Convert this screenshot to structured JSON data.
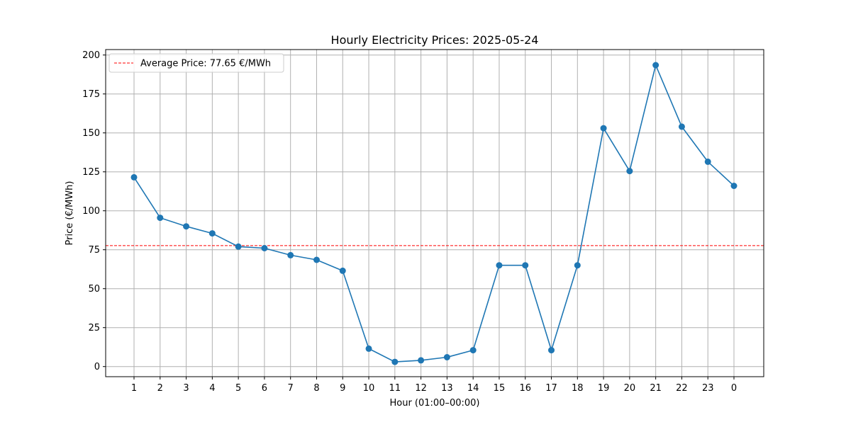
{
  "chart_data": {
    "type": "line",
    "title": "Hourly Electricity Prices: 2025-05-24",
    "xlabel": "Hour (01:00–00:00)",
    "ylabel": "Price (€/MWh)",
    "categories": [
      "1",
      "2",
      "3",
      "4",
      "5",
      "6",
      "7",
      "8",
      "9",
      "10",
      "11",
      "12",
      "13",
      "14",
      "15",
      "16",
      "17",
      "18",
      "19",
      "20",
      "21",
      "22",
      "23",
      "0"
    ],
    "series": [
      {
        "values": [
          121.5,
          95.5,
          90.0,
          85.5,
          77.0,
          76.0,
          71.5,
          68.5,
          61.5,
          11.5,
          3.0,
          4.0,
          6.0,
          10.5,
          65.0,
          65.0,
          10.5,
          65.0,
          153.0,
          125.5,
          193.5,
          154.0,
          131.5,
          116.0
        ],
        "color": "#1f77b4",
        "marker": "circle"
      }
    ],
    "reference_line": {
      "label": "Average Price: 77.65 €/MWh",
      "value": 77.65,
      "color": "#ff0000",
      "style": "dashed"
    },
    "ylim": [
      -6.5,
      203.5
    ],
    "yticks": [
      0,
      25,
      50,
      75,
      100,
      125,
      150,
      175,
      200
    ],
    "grid": true,
    "legend": "top-left"
  }
}
